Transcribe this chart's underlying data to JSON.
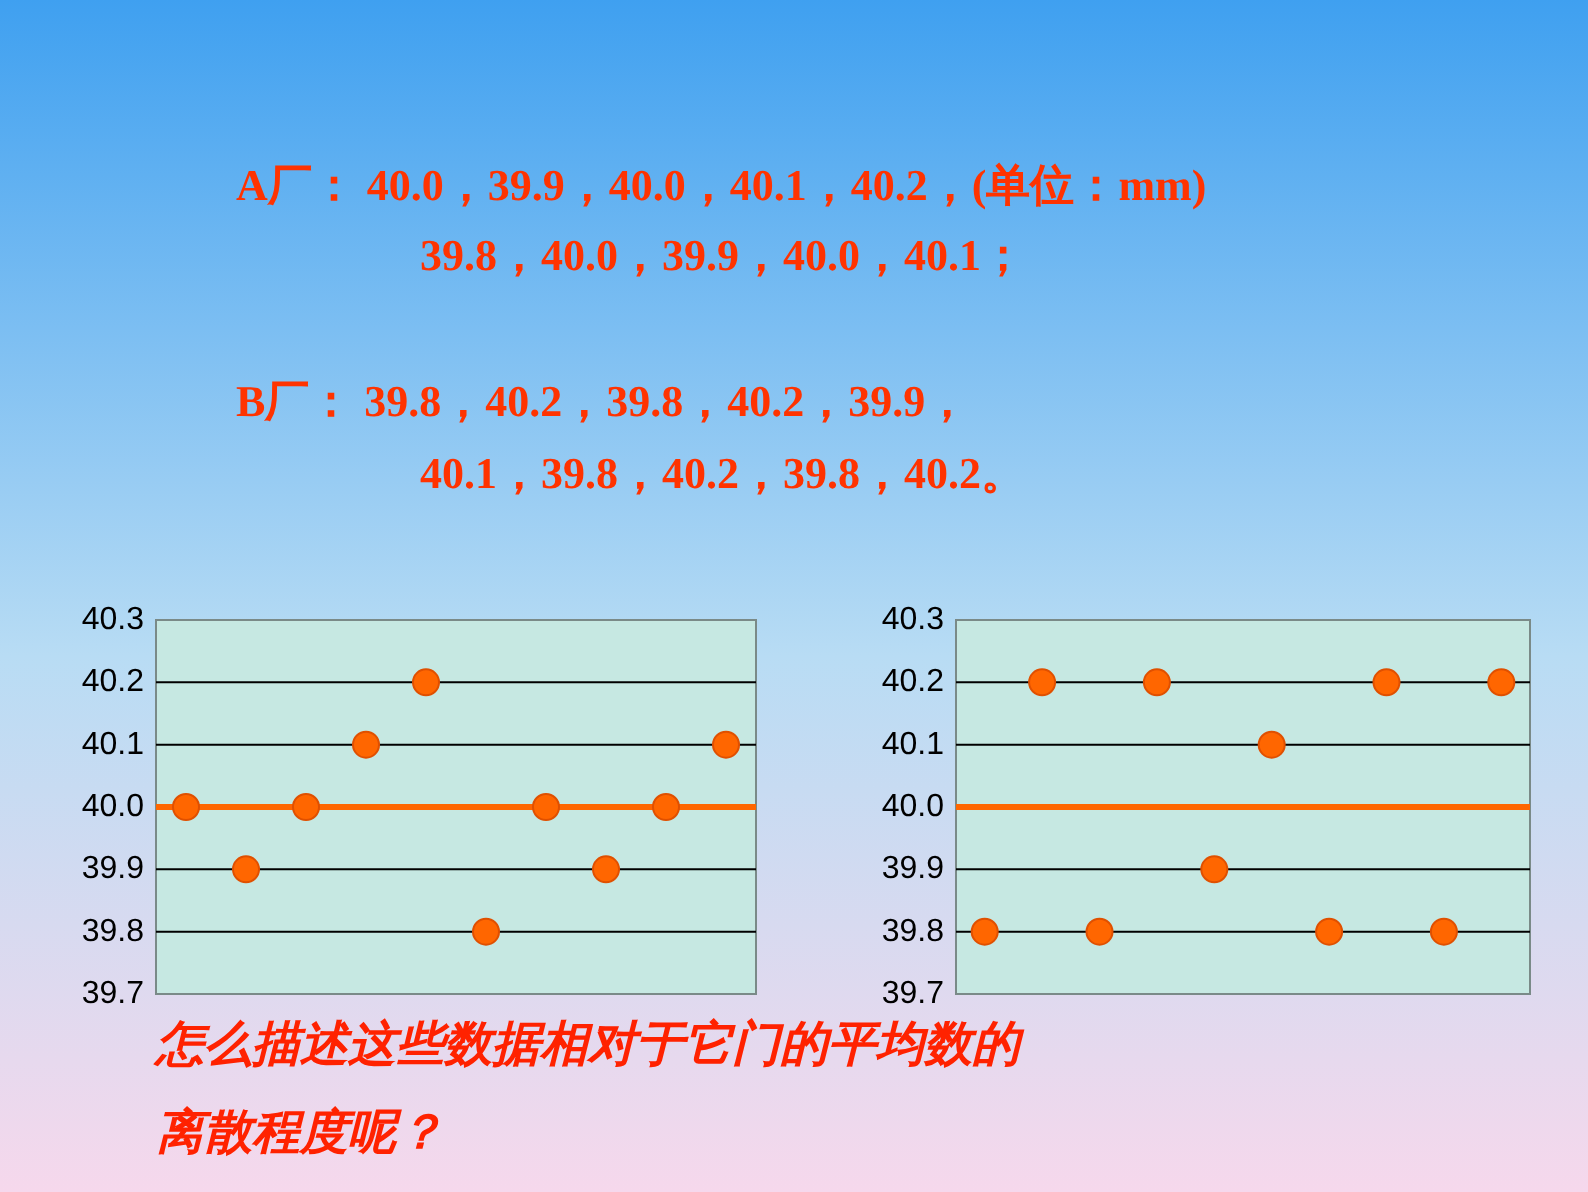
{
  "chart_data": [
    {
      "type": "other",
      "annotations": [
        "A厂：  40.0，39.9，40.0，40.1，40.2，(单位：mm)",
        "39.8，40.0，39.9，40.0，40.1；",
        "B厂：  39.8，40.2，39.8，40.2，39.9，",
        "40.1，39.8，40.2，39.8，40.2。"
      ]
    },
    {
      "type": "scatter",
      "categories": [
        null,
        null,
        null,
        null,
        null,
        null,
        null,
        null,
        null,
        null
      ],
      "values": [
        40.0,
        39.9,
        40.0,
        40.1,
        40.2,
        39.8,
        40.0,
        39.9,
        40.0,
        40.1
      ],
      "color": "#ff6600",
      "marker": "circle",
      "ylim": [
        39.7,
        40.3
      ],
      "yticks": [
        {
          "value": 39.7,
          "label": "39.7"
        },
        {
          "value": 39.8,
          "label": "39.8"
        },
        {
          "value": 39.9,
          "label": "39.9"
        },
        {
          "value": 40.0,
          "label": "40.0"
        },
        {
          "value": 40.1,
          "label": "40.1"
        },
        {
          "value": 40.2,
          "label": "40.2"
        },
        {
          "value": 40.3,
          "label": "40.3"
        }
      ],
      "grid": "y",
      "tick_labels": "y",
      "ref_lines": [
        {
          "axis": "y",
          "value": 40.0,
          "color": "#ff6600"
        }
      ]
    },
    {
      "type": "scatter",
      "categories": [
        null,
        null,
        null,
        null,
        null,
        null,
        null,
        null,
        null,
        null
      ],
      "values": [
        39.8,
        40.2,
        39.8,
        40.2,
        39.9,
        40.1,
        39.8,
        40.2,
        39.8,
        40.2
      ],
      "color": "#ff6600",
      "marker": "circle",
      "ylim": [
        39.7,
        40.3
      ],
      "yticks": [
        {
          "value": 39.7,
          "label": "39.7"
        },
        {
          "value": 39.8,
          "label": "39.8"
        },
        {
          "value": 39.9,
          "label": "39.9"
        },
        {
          "value": 40.0,
          "label": "40.0"
        },
        {
          "value": 40.1,
          "label": "40.1"
        },
        {
          "value": 40.2,
          "label": "40.2"
        },
        {
          "value": 40.3,
          "label": "40.3"
        }
      ],
      "grid": "y",
      "tick_labels": "y",
      "ref_lines": [
        {
          "axis": "y",
          "value": 40.0,
          "color": "#ff6600"
        }
      ]
    },
    {
      "type": "other",
      "annotations": [
        "怎么描述这些数据相对于它门的平均数的",
        "离散程度呢？"
      ]
    }
  ]
}
